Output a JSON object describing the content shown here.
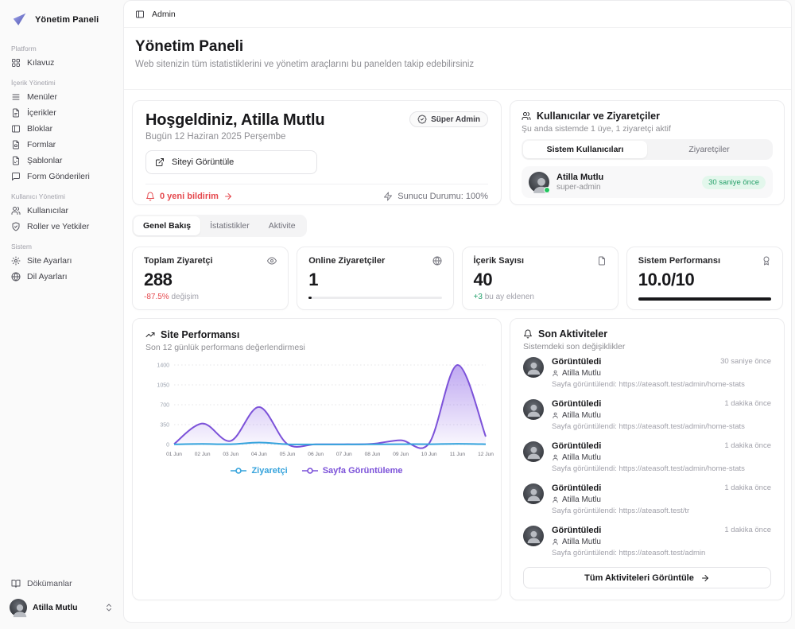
{
  "colors": {
    "accent_purple": "#7c52d9",
    "accent_blue": "#35a3dc",
    "danger": "#e5484d",
    "success": "#22a06b"
  },
  "sidebar": {
    "logo_title": "Yönetim Paneli",
    "sections": [
      {
        "label": "Platform",
        "items": [
          {
            "label": "Kılavuz",
            "icon": "grid-icon"
          }
        ]
      },
      {
        "label": "İçerik Yönetimi",
        "items": [
          {
            "label": "Menüler",
            "icon": "menu-icon"
          },
          {
            "label": "İçerikler",
            "icon": "file-text-icon"
          },
          {
            "label": "Bloklar",
            "icon": "panel-icon"
          },
          {
            "label": "Formlar",
            "icon": "file-form-icon"
          },
          {
            "label": "Şablonlar",
            "icon": "file-template-icon"
          },
          {
            "label": "Form Gönderileri",
            "icon": "message-icon"
          }
        ]
      },
      {
        "label": "Kullanıcı Yönetimi",
        "items": [
          {
            "label": "Kullanıcılar",
            "icon": "users-icon"
          },
          {
            "label": "Roller ve Yetkiler",
            "icon": "shield-check-icon"
          }
        ]
      },
      {
        "label": "Sistem",
        "items": [
          {
            "label": "Site Ayarları",
            "icon": "settings-icon"
          },
          {
            "label": "Dil Ayarları",
            "icon": "globe-icon"
          }
        ]
      }
    ],
    "footer": {
      "docs_label": "Dökümanlar",
      "user_name": "Atilla Mutlu"
    }
  },
  "header": {
    "breadcrumb": "Admin"
  },
  "page": {
    "title": "Yönetim Paneli",
    "subtitle": "Web sitenizin tüm istatistiklerini ve yönetim araçlarını bu panelden takip edebilirsiniz"
  },
  "welcome": {
    "title": "Hoşgeldiniz, Atilla Mutlu",
    "badge": "Süper Admin",
    "date": "Bugün 12 Haziran 2025 Perşembe",
    "view_site_button": "Siteyi Görüntüle",
    "notifications": "0 yeni bildirim",
    "server_status": "Sunucu Durumu: 100%"
  },
  "users_card": {
    "title": "Kullanıcılar ve Ziyaretçiler",
    "subtitle": "Şu anda sistemde 1 üye, 1 ziyaretçi aktif",
    "tabs": [
      "Sistem Kullanıcıları",
      "Ziyaretçiler"
    ],
    "user": {
      "name": "Atilla Mutlu",
      "role": "super-admin",
      "time": "30 saniye önce"
    }
  },
  "view_tabs": [
    "Genel Bakış",
    "İstatistikler",
    "Aktivite"
  ],
  "stats": [
    {
      "title": "Toplam Ziyaretçi",
      "icon": "eye-icon",
      "value": "288",
      "delta": "-87.5%",
      "delta_note": "değişim"
    },
    {
      "title": "Online Ziyaretçiler",
      "icon": "globe-icon",
      "value": "1",
      "progress": 2
    },
    {
      "title": "İçerik Sayısı",
      "icon": "file-icon",
      "value": "40",
      "delta": "+3",
      "delta_note": "bu ay eklenen"
    },
    {
      "title": "Sistem Performansı",
      "icon": "award-icon",
      "value": "10.0/10",
      "progress": 100
    }
  ],
  "chart_card": {
    "title": "Site Performansı",
    "subtitle": "Son 12 günlük performans değerlendirmesi"
  },
  "chart_data": {
    "type": "area",
    "x": [
      "01 Jun",
      "02 Jun",
      "03 Jun",
      "04 Jun",
      "05 Jun",
      "06 Jun",
      "07 Jun",
      "08 Jun",
      "09 Jun",
      "10 Jun",
      "11 Jun",
      "12 Jun"
    ],
    "series": [
      {
        "name": "Ziyaretçi",
        "color": "#35a3dc",
        "fill": false,
        "values": [
          3,
          10,
          6,
          35,
          4,
          2,
          2,
          3,
          6,
          6,
          12,
          6
        ]
      },
      {
        "name": "Sayfa Görüntüleme",
        "color": "#7c52d9",
        "fill": true,
        "values": [
          10,
          370,
          65,
          660,
          8,
          4,
          4,
          12,
          75,
          20,
          1400,
          140
        ]
      }
    ],
    "ylim": [
      0,
      1400
    ],
    "yticks": [
      0,
      350,
      700,
      1050,
      1400
    ],
    "grid": true,
    "legend_position": "bottom"
  },
  "activities": {
    "title": "Son Aktiviteler",
    "subtitle": "Sistemdeki son değişiklikler",
    "items": [
      {
        "action": "Görüntüledi",
        "user": "Atilla Mutlu",
        "detail": "Sayfa görüntülendi: https://ateasoft.test/admin/home-stats",
        "time": "30 saniye önce"
      },
      {
        "action": "Görüntüledi",
        "user": "Atilla Mutlu",
        "detail": "Sayfa görüntülendi: https://ateasoft.test/admin/home-stats",
        "time": "1 dakika önce"
      },
      {
        "action": "Görüntüledi",
        "user": "Atilla Mutlu",
        "detail": "Sayfa görüntülendi: https://ateasoft.test/admin/home-stats",
        "time": "1 dakika önce"
      },
      {
        "action": "Görüntüledi",
        "user": "Atilla Mutlu",
        "detail": "Sayfa görüntülendi: https://ateasoft.test/tr",
        "time": "1 dakika önce"
      },
      {
        "action": "Görüntüledi",
        "user": "Atilla Mutlu",
        "detail": "Sayfa görüntülendi: https://ateasoft.test/admin",
        "time": "1 dakika önce"
      }
    ],
    "view_all_button": "Tüm Aktiviteleri Görüntüle"
  }
}
